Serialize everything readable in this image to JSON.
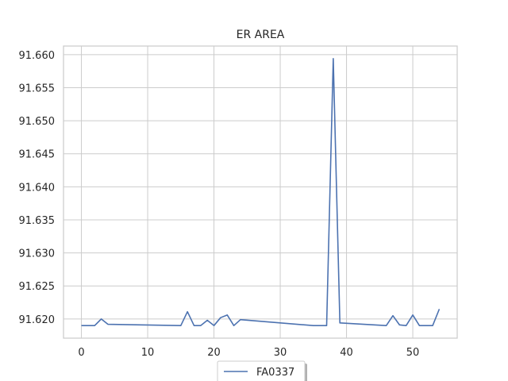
{
  "chart_data": {
    "type": "line",
    "title": "ER AREA",
    "xlabel": "",
    "ylabel": "",
    "xlim": [
      -2.7,
      56.7
    ],
    "ylim": [
      91.6171,
      91.6613
    ],
    "xticks": [
      0,
      10,
      20,
      30,
      40,
      50
    ],
    "yticks": [
      91.62,
      91.625,
      91.63,
      91.635,
      91.64,
      91.645,
      91.65,
      91.655,
      91.66
    ],
    "grid": true,
    "legend_position": "bottom-center",
    "series": [
      {
        "name": "FA0337",
        "color": "#4c72b0",
        "x": [
          0,
          2,
          3,
          4,
          15,
          16,
          17,
          18,
          19,
          20,
          21,
          22,
          23,
          24,
          35,
          36,
          37,
          38,
          39,
          46,
          47,
          48,
          49,
          50,
          51,
          53,
          54
        ],
        "y": [
          91.619,
          91.619,
          91.62,
          91.6192,
          91.619,
          91.6211,
          91.619,
          91.619,
          91.6198,
          91.619,
          91.6202,
          91.6206,
          91.619,
          91.6199,
          91.619,
          91.619,
          91.619,
          91.6594,
          91.6194,
          91.619,
          91.6205,
          91.6191,
          91.619,
          91.6206,
          91.619,
          91.619,
          91.6215
        ]
      }
    ]
  }
}
